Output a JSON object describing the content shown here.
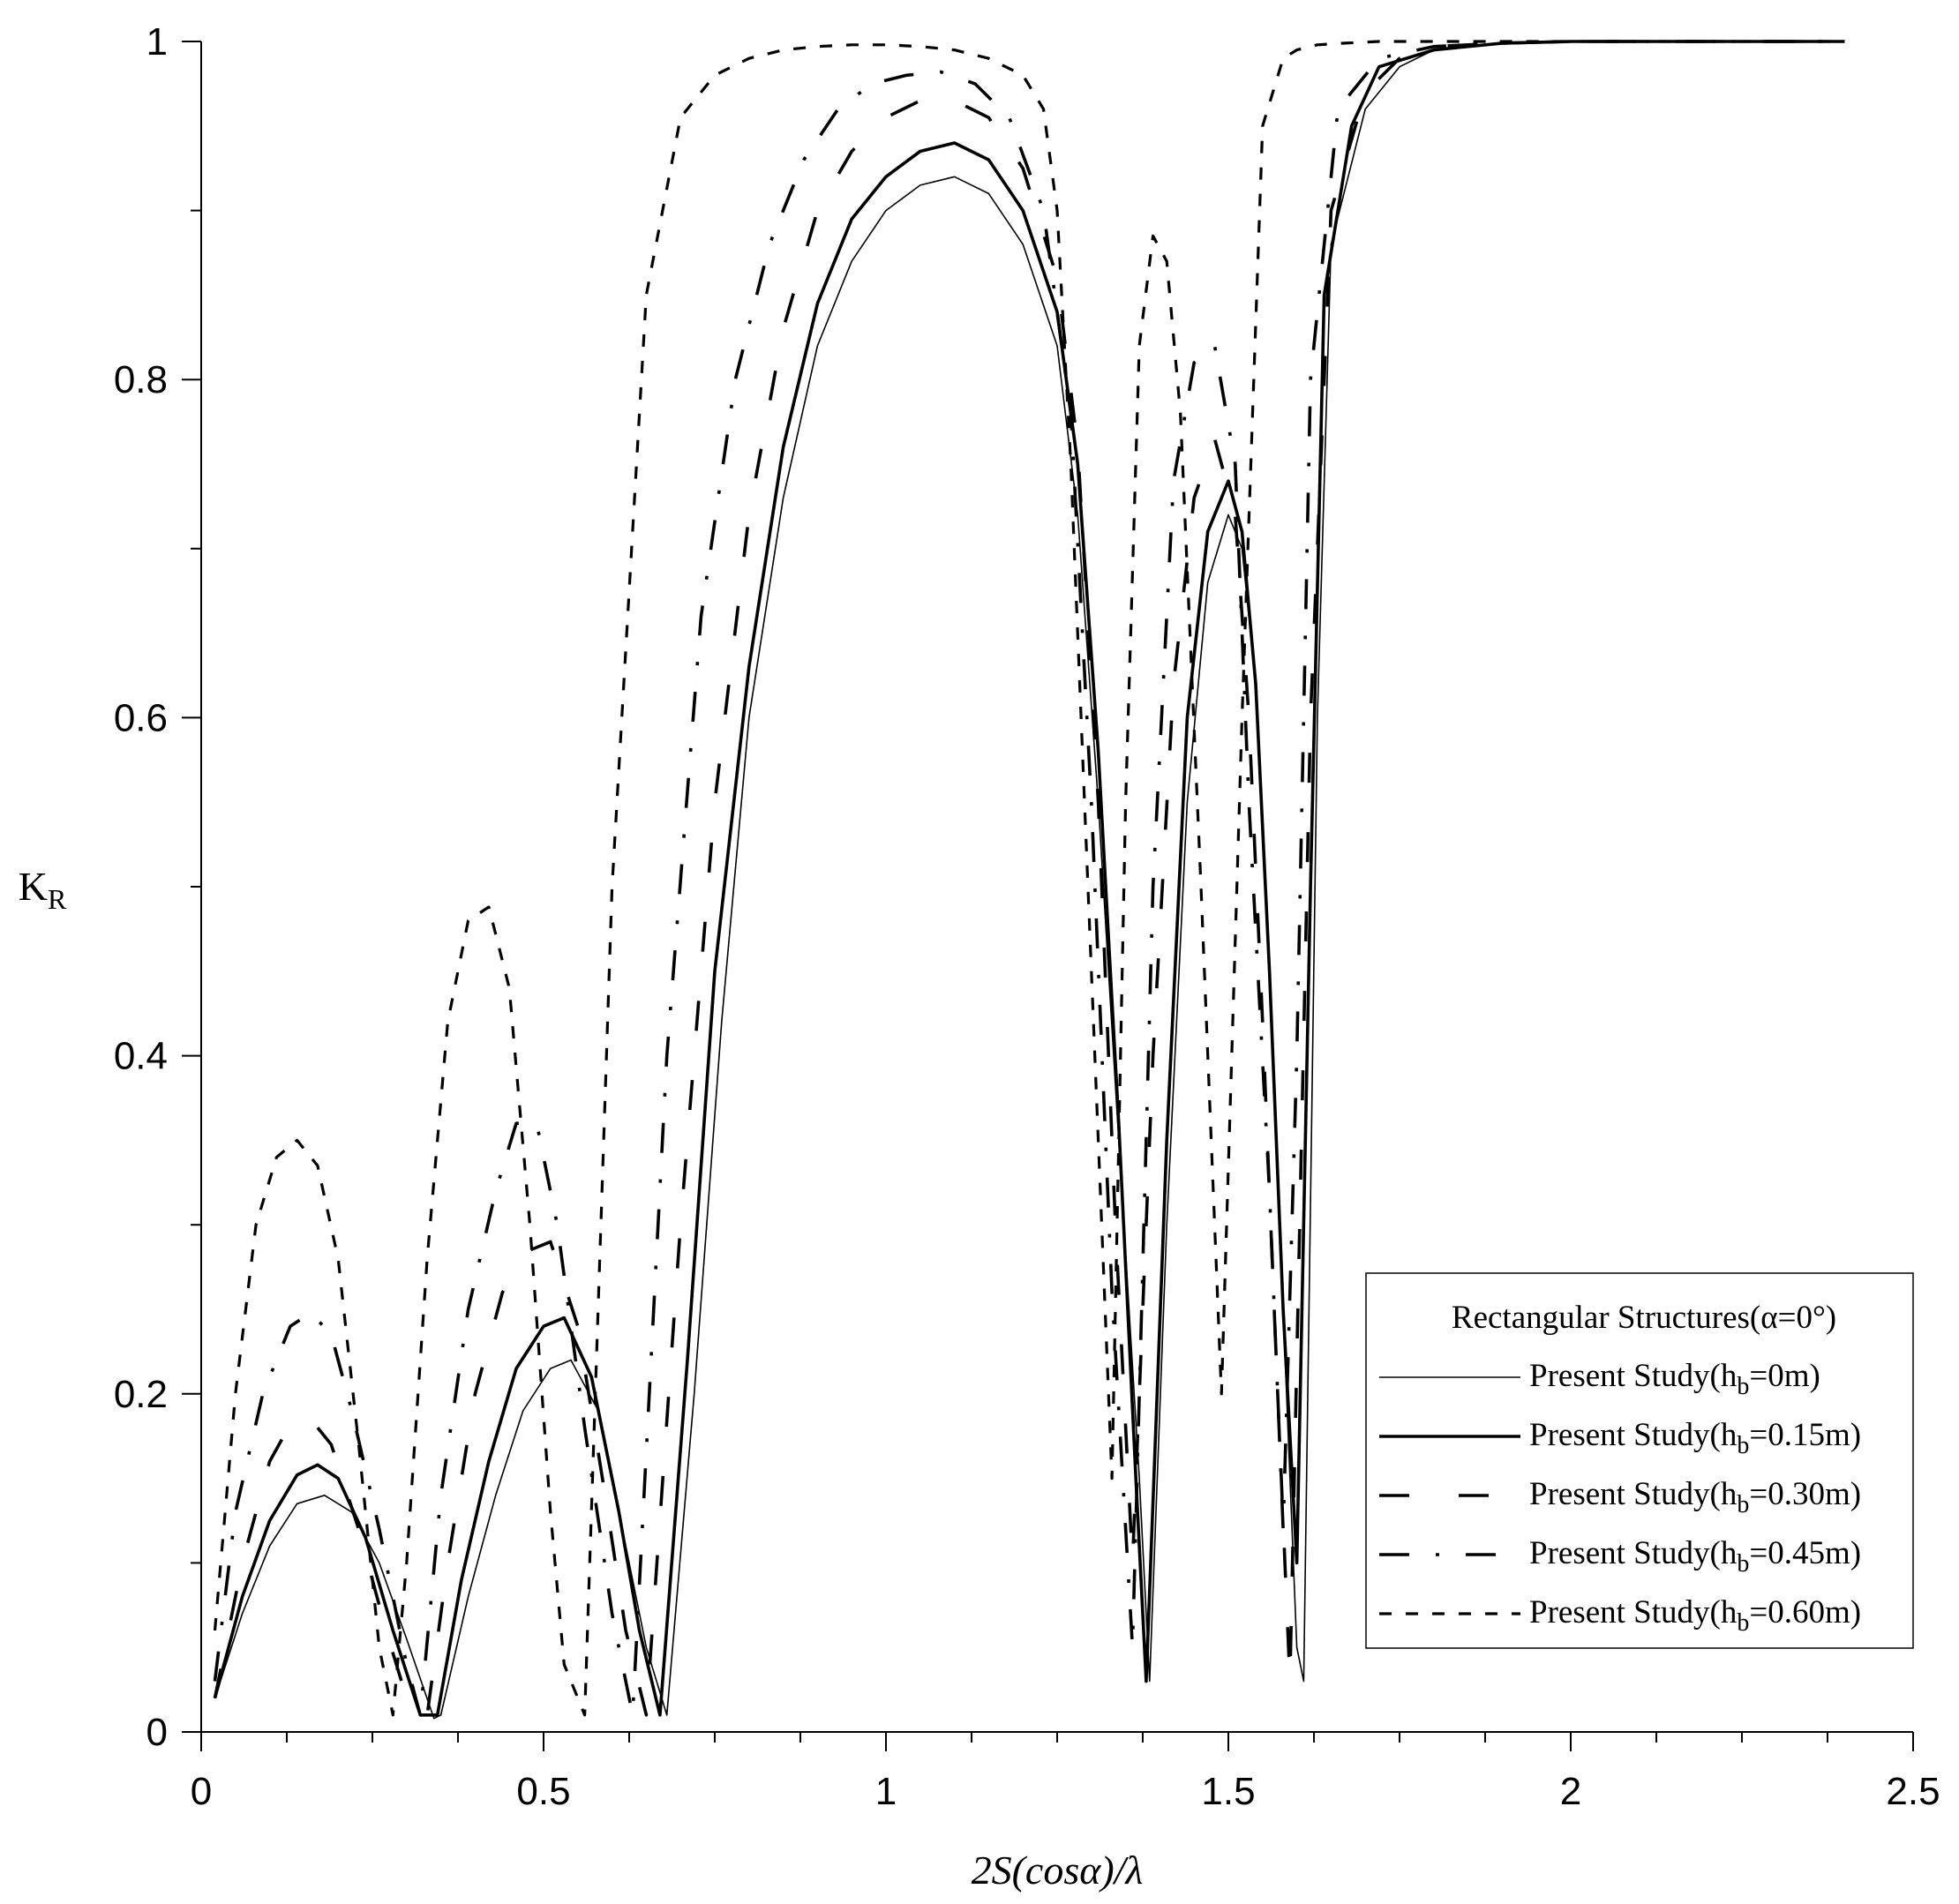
{
  "chart_data": {
    "type": "line",
    "xlabel": "2S(cosα)/λ",
    "ylabel": "K",
    "ylabel_sub": "R",
    "xlim": [
      0,
      2.5
    ],
    "ylim": [
      0,
      1
    ],
    "x_ticks": [
      "0",
      "0.5",
      "1",
      "1.5",
      "2",
      "2.5"
    ],
    "x_tick_values": [
      0,
      0.5,
      1,
      1.5,
      2,
      2.5
    ],
    "y_ticks": [
      "0",
      "0.2",
      "0.4",
      "0.6",
      "0.8",
      "1"
    ],
    "y_tick_values": [
      0,
      0.2,
      0.4,
      0.6,
      0.8,
      1
    ],
    "grid": false,
    "legend": {
      "position": "bottom-right",
      "title": "Rectangular Structures(α=0°)",
      "entries": [
        {
          "prefix": "Present Study(h",
          "sub": "b",
          "suffix": "=0m)"
        },
        {
          "prefix": "Present Study(h",
          "sub": "b",
          "suffix": "=0.15m)"
        },
        {
          "prefix": "Present Study(h",
          "sub": "b",
          "suffix": "=0.30m)"
        },
        {
          "prefix": "Present Study(h",
          "sub": "b",
          "suffix": "=0.45m)"
        },
        {
          "prefix": "Present Study(h",
          "sub": "b",
          "suffix": "=0.60m)"
        }
      ]
    },
    "series": [
      {
        "name": "Present Study(hb=0m)",
        "dash": "",
        "width": 1.6,
        "x": [
          0.02,
          0.06,
          0.1,
          0.14,
          0.18,
          0.22,
          0.26,
          0.3,
          0.34,
          0.35,
          0.39,
          0.43,
          0.47,
          0.51,
          0.54,
          0.58,
          0.62,
          0.65,
          0.68,
          0.72,
          0.76,
          0.8,
          0.85,
          0.9,
          0.95,
          1.0,
          1.05,
          1.1,
          1.15,
          1.2,
          1.25,
          1.28,
          1.31,
          1.34,
          1.37,
          1.385,
          1.41,
          1.44,
          1.47,
          1.5,
          1.52,
          1.54,
          1.56,
          1.58,
          1.6,
          1.61,
          1.63,
          1.65,
          1.7,
          1.75,
          1.8,
          1.9,
          2.0,
          2.2,
          2.4
        ],
        "y": [
          0.02,
          0.07,
          0.11,
          0.135,
          0.14,
          0.13,
          0.1,
          0.055,
          0.008,
          0.01,
          0.08,
          0.14,
          0.19,
          0.215,
          0.22,
          0.19,
          0.11,
          0.05,
          0.01,
          0.2,
          0.42,
          0.6,
          0.73,
          0.82,
          0.87,
          0.9,
          0.915,
          0.92,
          0.91,
          0.88,
          0.82,
          0.72,
          0.55,
          0.35,
          0.15,
          0.03,
          0.3,
          0.55,
          0.68,
          0.72,
          0.7,
          0.62,
          0.45,
          0.25,
          0.05,
          0.03,
          0.6,
          0.88,
          0.96,
          0.985,
          0.995,
          0.999,
          1.0,
          1.0,
          1.0
        ]
      },
      {
        "name": "Present Study(hb=0.15m)",
        "dash": "",
        "width": 3.6,
        "x": [
          0.02,
          0.06,
          0.1,
          0.14,
          0.17,
          0.2,
          0.24,
          0.28,
          0.32,
          0.345,
          0.38,
          0.42,
          0.46,
          0.5,
          0.53,
          0.57,
          0.61,
          0.64,
          0.67,
          0.71,
          0.75,
          0.8,
          0.85,
          0.9,
          0.95,
          1.0,
          1.05,
          1.1,
          1.15,
          1.2,
          1.25,
          1.28,
          1.31,
          1.34,
          1.365,
          1.38,
          1.41,
          1.44,
          1.47,
          1.5,
          1.52,
          1.54,
          1.56,
          1.58,
          1.6,
          1.62,
          1.64,
          1.68,
          1.72,
          1.8,
          1.9,
          2.0,
          2.2,
          2.4
        ],
        "y": [
          0.02,
          0.08,
          0.125,
          0.152,
          0.158,
          0.15,
          0.115,
          0.06,
          0.01,
          0.01,
          0.09,
          0.16,
          0.215,
          0.24,
          0.245,
          0.21,
          0.13,
          0.06,
          0.01,
          0.22,
          0.45,
          0.63,
          0.76,
          0.845,
          0.895,
          0.92,
          0.935,
          0.94,
          0.93,
          0.9,
          0.84,
          0.75,
          0.58,
          0.36,
          0.15,
          0.03,
          0.35,
          0.6,
          0.71,
          0.74,
          0.71,
          0.62,
          0.45,
          0.25,
          0.1,
          0.5,
          0.85,
          0.95,
          0.985,
          0.995,
          0.999,
          1.0,
          1.0,
          1.0
        ]
      },
      {
        "name": "Present Study(hb=0.30m)",
        "dash": "34 56",
        "width": 3.6,
        "x": [
          0.02,
          0.06,
          0.1,
          0.13,
          0.16,
          0.19,
          0.23,
          0.27,
          0.3,
          0.33,
          0.36,
          0.4,
          0.44,
          0.48,
          0.51,
          0.55,
          0.59,
          0.62,
          0.65,
          0.7,
          0.75,
          0.8,
          0.85,
          0.9,
          0.95,
          1.0,
          1.05,
          1.1,
          1.15,
          1.2,
          1.25,
          1.28,
          1.31,
          1.335,
          1.36,
          1.39,
          1.42,
          1.45,
          1.48,
          1.51,
          1.53,
          1.55,
          1.57,
          1.59,
          1.62,
          1.65,
          1.7,
          1.75,
          1.8,
          1.9,
          2.0,
          2.2,
          2.4
        ],
        "y": [
          0.02,
          0.1,
          0.16,
          0.182,
          0.185,
          0.17,
          0.12,
          0.06,
          0.02,
          0.01,
          0.1,
          0.2,
          0.26,
          0.285,
          0.29,
          0.24,
          0.14,
          0.06,
          0.01,
          0.3,
          0.55,
          0.72,
          0.83,
          0.9,
          0.935,
          0.955,
          0.965,
          0.965,
          0.955,
          0.925,
          0.86,
          0.76,
          0.55,
          0.3,
          0.1,
          0.4,
          0.62,
          0.73,
          0.765,
          0.72,
          0.6,
          0.42,
          0.22,
          0.03,
          0.6,
          0.9,
          0.97,
          0.99,
          0.997,
          0.999,
          1.0,
          1.0,
          1.0
        ]
      },
      {
        "name": "Present Study(hb=0.45m)",
        "dash": "34 30 4 30",
        "width": 3.6,
        "x": [
          0.02,
          0.05,
          0.09,
          0.13,
          0.16,
          0.19,
          0.22,
          0.26,
          0.3,
          0.32,
          0.35,
          0.39,
          0.43,
          0.46,
          0.49,
          0.52,
          0.56,
          0.6,
          0.63,
          0.68,
          0.73,
          0.78,
          0.83,
          0.88,
          0.93,
          0.98,
          1.03,
          1.08,
          1.13,
          1.18,
          1.23,
          1.27,
          1.3,
          1.33,
          1.36,
          1.39,
          1.42,
          1.45,
          1.48,
          1.51,
          1.53,
          1.56,
          1.58,
          1.6,
          1.62,
          1.66,
          1.72,
          1.8,
          1.9,
          2.0,
          2.2,
          2.4
        ],
        "y": [
          0.03,
          0.13,
          0.2,
          0.24,
          0.248,
          0.235,
          0.19,
          0.12,
          0.04,
          0.01,
          0.14,
          0.25,
          0.32,
          0.36,
          0.36,
          0.3,
          0.18,
          0.07,
          0.01,
          0.4,
          0.66,
          0.8,
          0.88,
          0.93,
          0.96,
          0.975,
          0.98,
          0.982,
          0.975,
          0.955,
          0.9,
          0.78,
          0.55,
          0.26,
          0.05,
          0.5,
          0.74,
          0.81,
          0.82,
          0.75,
          0.55,
          0.32,
          0.12,
          0.4,
          0.8,
          0.96,
          0.99,
          0.997,
          0.999,
          1.0,
          1.0,
          1.0
        ]
      },
      {
        "name": "Present Study(hb=0.60m)",
        "dash": "14 16",
        "width": 3.2,
        "x": [
          0.02,
          0.05,
          0.08,
          0.11,
          0.14,
          0.17,
          0.2,
          0.23,
          0.26,
          0.28,
          0.3,
          0.33,
          0.36,
          0.39,
          0.42,
          0.45,
          0.48,
          0.51,
          0.53,
          0.56,
          0.6,
          0.65,
          0.7,
          0.75,
          0.8,
          0.85,
          0.9,
          0.95,
          1.0,
          1.05,
          1.1,
          1.15,
          1.2,
          1.23,
          1.25,
          1.27,
          1.29,
          1.31,
          1.33,
          1.35,
          1.37,
          1.39,
          1.41,
          1.43,
          1.46,
          1.49,
          1.52,
          1.55,
          1.58,
          1.6,
          1.63,
          1.67,
          1.72,
          1.8,
          1.9,
          2.0,
          2.2,
          2.4
        ],
        "y": [
          0.06,
          0.2,
          0.3,
          0.34,
          0.35,
          0.335,
          0.28,
          0.17,
          0.05,
          0.01,
          0.1,
          0.28,
          0.42,
          0.48,
          0.488,
          0.44,
          0.3,
          0.13,
          0.04,
          0.01,
          0.5,
          0.85,
          0.955,
          0.98,
          0.99,
          0.995,
          0.997,
          0.998,
          0.998,
          0.997,
          0.995,
          0.99,
          0.98,
          0.96,
          0.9,
          0.75,
          0.55,
          0.35,
          0.15,
          0.55,
          0.82,
          0.885,
          0.87,
          0.78,
          0.5,
          0.2,
          0.6,
          0.95,
          0.99,
          0.995,
          0.998,
          0.999,
          1.0,
          1.0,
          1.0,
          1.0,
          1.0,
          1.0
        ]
      }
    ]
  }
}
